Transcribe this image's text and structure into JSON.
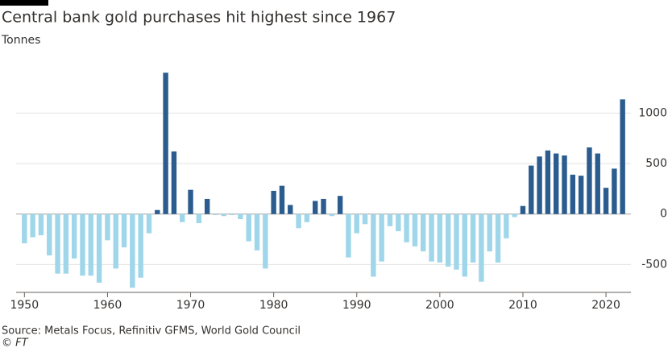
{
  "chart_data": {
    "type": "bar",
    "title": "Central bank gold purchases hit highest since 1967",
    "subtitle": "Tonnes",
    "source": "Source: Metals Focus, Refinitiv GFMS, World Gold Council",
    "credit": "© FT",
    "x": [
      1950,
      1951,
      1952,
      1953,
      1954,
      1955,
      1956,
      1957,
      1958,
      1959,
      1960,
      1961,
      1962,
      1963,
      1964,
      1965,
      1966,
      1967,
      1968,
      1969,
      1970,
      1971,
      1972,
      1973,
      1974,
      1975,
      1976,
      1977,
      1978,
      1979,
      1980,
      1981,
      1982,
      1983,
      1984,
      1985,
      1986,
      1987,
      1988,
      1989,
      1990,
      1991,
      1992,
      1993,
      1994,
      1995,
      1996,
      1997,
      1998,
      1999,
      2000,
      2001,
      2002,
      2003,
      2004,
      2005,
      2006,
      2007,
      2008,
      2009,
      2010,
      2011,
      2012,
      2013,
      2014,
      2015,
      2016,
      2017,
      2018,
      2019,
      2020,
      2021,
      2022
    ],
    "values": [
      -290,
      -230,
      -210,
      -410,
      -590,
      -590,
      -440,
      -610,
      -610,
      -680,
      -260,
      -540,
      -330,
      -730,
      -630,
      -190,
      40,
      1400,
      620,
      -80,
      240,
      -90,
      150,
      -10,
      -20,
      -10,
      -50,
      -270,
      -360,
      -540,
      230,
      280,
      90,
      -140,
      -80,
      130,
      150,
      -20,
      180,
      -430,
      -190,
      -100,
      -620,
      -470,
      -120,
      -170,
      -280,
      -320,
      -370,
      -470,
      -480,
      -520,
      -550,
      -620,
      -480,
      -670,
      -370,
      -480,
      -240,
      -30,
      80,
      480,
      570,
      630,
      600,
      580,
      390,
      380,
      660,
      600,
      260,
      450,
      1136
    ],
    "color_positive": "#2b5c8f",
    "color_negative": "#9fd6ea",
    "xlim": [
      1949,
      2023
    ],
    "xticks": [
      1950,
      1960,
      1970,
      1980,
      1990,
      2000,
      2010,
      2020
    ],
    "ylim": [
      -760,
      1450
    ],
    "yticks": [
      -500,
      0,
      500,
      1000
    ],
    "grid": true
  }
}
